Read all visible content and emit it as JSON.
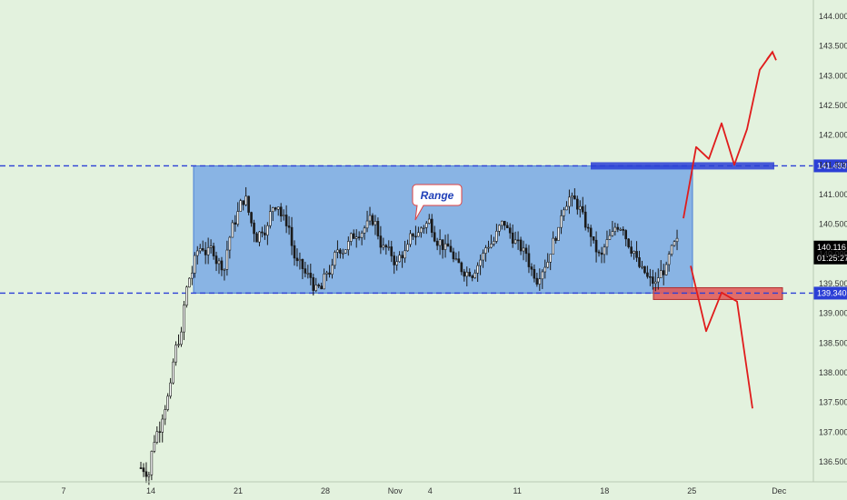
{
  "chart_data": {
    "type": "candlestick",
    "x_tick_labels": [
      {
        "label": "7",
        "index": 0
      },
      {
        "label": "14",
        "index": 5
      },
      {
        "label": "21",
        "index": 10
      },
      {
        "label": "28",
        "index": 15
      },
      {
        "label": "Nov",
        "index": 19
      },
      {
        "label": "4",
        "index": 21
      },
      {
        "label": "11",
        "index": 26
      },
      {
        "label": "18",
        "index": 31
      },
      {
        "label": "25",
        "index": 36
      },
      {
        "label": "Dec",
        "index": 41
      }
    ],
    "y_tick_labels": [
      "144.000",
      "143.500",
      "143.000",
      "142.500",
      "142.000",
      "141.500",
      "141.000",
      "140.500",
      "140.000",
      "139.500",
      "139.000",
      "138.500",
      "138.000",
      "137.500",
      "137.000",
      "136.500"
    ],
    "ylim": [
      136.25,
      144.25
    ],
    "candles_close": [
      136.4,
      137.3,
      137.9,
      138.8,
      139.9,
      140.2,
      140.0,
      139.8,
      140.7,
      141.0,
      140.2,
      140.6,
      141.0,
      140.4,
      139.6,
      139.5,
      139.3,
      139.8,
      140.2,
      140.3,
      140.6,
      140.5,
      140.0,
      139.8,
      140.1,
      140.4,
      140.6,
      140.3,
      140.0,
      139.6,
      139.8,
      140.1,
      140.3,
      140.5,
      140.2,
      139.9,
      139.6,
      140.1,
      140.5,
      141.2,
      140.7,
      140.2,
      139.8,
      140.3,
      140.6,
      140.1,
      139.5,
      139.4,
      139.8,
      140.116
    ],
    "range_box": {
      "low": 139.34,
      "high": 141.483,
      "label": "Range"
    },
    "levels": [
      {
        "value": "141.483",
        "color": "#2b3fd6"
      },
      {
        "value": "139.340",
        "color": "#2b3fd6"
      }
    ],
    "current_price": {
      "value": "140.116",
      "countdown": "01:25:27"
    },
    "projections": {
      "bullish": [
        140.6,
        141.8,
        141.6,
        142.2,
        141.5,
        142.1,
        143.1,
        143.4
      ],
      "bearish": [
        139.8,
        138.7,
        139.35,
        139.2,
        137.4
      ]
    },
    "colors": {
      "background": "#e3f2de",
      "range_fill": "#6b9fe6",
      "candles": "#1a1a1a",
      "level_line": "#2b3fd6",
      "resistance_zone": "#2b3fd6",
      "support_zone": "#e05555",
      "projection": "#e01c1c",
      "current_price_badge": "#000000"
    }
  }
}
